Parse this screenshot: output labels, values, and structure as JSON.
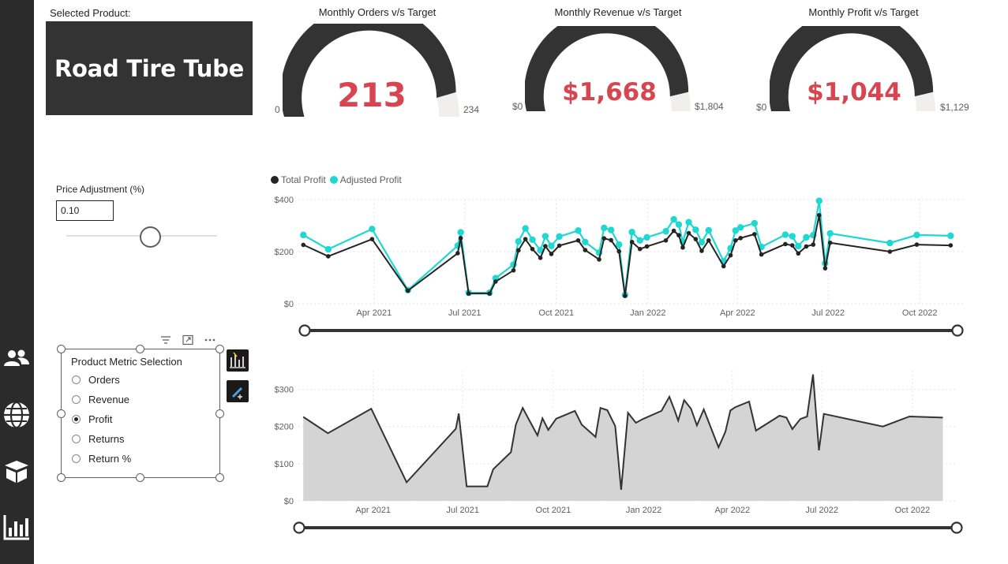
{
  "sidebar": {
    "items": [
      {
        "icon": "users-icon"
      },
      {
        "icon": "globe-icon"
      },
      {
        "icon": "box-icon"
      },
      {
        "icon": "bar-chart-icon"
      }
    ]
  },
  "selected_product": {
    "label": "Selected Product:",
    "value": "Road Tire Tube"
  },
  "gauges": [
    {
      "title": "Monthly Orders v/s Target",
      "value": "213",
      "min": "0",
      "max": "234",
      "fill_fraction": 0.91
    },
    {
      "title": "Monthly Revenue v/s Target",
      "value": "$1,668",
      "min": "$0",
      "max": "$1,804",
      "fill_fraction": 0.925
    },
    {
      "title": "Monthly Profit v/s Target",
      "value": "$1,044",
      "min": "$0",
      "max": "$1,129",
      "fill_fraction": 0.925
    }
  ],
  "price_adjustment": {
    "label": "Price Adjustment (%)",
    "value": "0.10",
    "slider_fraction": 0.5
  },
  "metric_selection": {
    "title": "Product Metric Selection",
    "options": [
      "Orders",
      "Revenue",
      "Profit",
      "Returns",
      "Return %"
    ],
    "selected": "Profit"
  },
  "colors": {
    "accent_red": "#d64550",
    "total_profit": "#252423",
    "adjusted_profit": "#1fd8d1",
    "area_fill": "#d4d4d4",
    "sidebar": "#2b2b2b"
  },
  "chart_data": [
    {
      "type": "line",
      "legend": [
        "Total Profit",
        "Adjusted Profit"
      ],
      "legend_position": "top-left",
      "yticks": [
        "$0",
        "$200",
        "$400"
      ],
      "ylim": [
        0,
        400
      ],
      "xlim": [
        "2021-01-15",
        "2022-11-15"
      ],
      "xticks": [
        {
          "label": "Apr 2021",
          "date": "2021-04-01"
        },
        {
          "label": "Jul 2021",
          "date": "2021-07-01"
        },
        {
          "label": "Oct 2021",
          "date": "2021-10-01"
        },
        {
          "label": "Jan 2022",
          "date": "2022-01-01"
        },
        {
          "label": "Apr 2022",
          "date": "2022-04-01"
        },
        {
          "label": "Jul 2022",
          "date": "2022-07-01"
        },
        {
          "label": "Oct 2022",
          "date": "2022-10-01"
        }
      ],
      "grid": true,
      "series": [
        {
          "name": "Total Profit",
          "points": [
            [
              "2021-01-20",
              226
            ],
            [
              "2021-02-14",
              182
            ],
            [
              "2021-03-30",
              248
            ],
            [
              "2021-05-05",
              50
            ],
            [
              "2021-06-24",
              194
            ],
            [
              "2021-06-27",
              252
            ],
            [
              "2021-07-05",
              39
            ],
            [
              "2021-07-26",
              39
            ],
            [
              "2021-08-01",
              85
            ],
            [
              "2021-08-19",
              128
            ],
            [
              "2021-08-24",
              205
            ],
            [
              "2021-08-31",
              248
            ],
            [
              "2021-09-07",
              210
            ],
            [
              "2021-09-15",
              176
            ],
            [
              "2021-09-20",
              221
            ],
            [
              "2021-09-26",
              191
            ],
            [
              "2021-10-04",
              223
            ],
            [
              "2021-10-23",
              243
            ],
            [
              "2021-10-30",
              206
            ],
            [
              "2021-11-13",
              170
            ],
            [
              "2021-11-18",
              251
            ],
            [
              "2021-11-25",
              244
            ],
            [
              "2021-12-03",
              201
            ],
            [
              "2021-12-09",
              30
            ],
            [
              "2021-12-16",
              237
            ],
            [
              "2021-12-24",
              210
            ],
            [
              "2021-12-31",
              220
            ],
            [
              "2022-01-19",
              243
            ],
            [
              "2022-01-27",
              280
            ],
            [
              "2022-02-01",
              263
            ],
            [
              "2022-02-05",
              216
            ],
            [
              "2022-02-11",
              271
            ],
            [
              "2022-02-18",
              248
            ],
            [
              "2022-02-24",
              203
            ],
            [
              "2022-03-03",
              243
            ],
            [
              "2022-03-18",
              144
            ],
            [
              "2022-03-25",
              186
            ],
            [
              "2022-03-30",
              243
            ],
            [
              "2022-04-04",
              252
            ],
            [
              "2022-04-18",
              267
            ],
            [
              "2022-04-25",
              189
            ],
            [
              "2022-05-19",
              229
            ],
            [
              "2022-05-26",
              224
            ],
            [
              "2022-06-01",
              193
            ],
            [
              "2022-06-09",
              220
            ],
            [
              "2022-06-16",
              227
            ],
            [
              "2022-06-22",
              340
            ],
            [
              "2022-06-28",
              136
            ],
            [
              "2022-07-03",
              234
            ],
            [
              "2022-09-01",
              200
            ],
            [
              "2022-09-28",
              227
            ],
            [
              "2022-11-01",
              224
            ]
          ]
        },
        {
          "name": "Adjusted Profit",
          "points": [
            [
              "2021-01-20",
              264
            ],
            [
              "2021-02-14",
              209
            ],
            [
              "2021-03-30",
              287
            ],
            [
              "2021-05-05",
              52
            ],
            [
              "2021-06-24",
              223
            ],
            [
              "2021-06-27",
              274
            ],
            [
              "2021-07-05",
              42
            ],
            [
              "2021-07-26",
              42
            ],
            [
              "2021-08-01",
              98
            ],
            [
              "2021-08-19",
              150
            ],
            [
              "2021-08-24",
              239
            ],
            [
              "2021-08-31",
              289
            ],
            [
              "2021-09-07",
              246
            ],
            [
              "2021-09-15",
              205
            ],
            [
              "2021-09-20",
              259
            ],
            [
              "2021-09-26",
              222
            ],
            [
              "2021-10-04",
              258
            ],
            [
              "2021-10-23",
              281
            ],
            [
              "2021-10-30",
              237
            ],
            [
              "2021-11-13",
              196
            ],
            [
              "2021-11-18",
              291
            ],
            [
              "2021-11-25",
              283
            ],
            [
              "2021-12-03",
              227
            ],
            [
              "2021-12-09",
              34
            ],
            [
              "2021-12-16",
              275
            ],
            [
              "2021-12-24",
              243
            ],
            [
              "2021-12-31",
              255
            ],
            [
              "2022-01-19",
              278
            ],
            [
              "2022-01-27",
              324
            ],
            [
              "2022-02-01",
              304
            ],
            [
              "2022-02-05",
              238
            ],
            [
              "2022-02-11",
              313
            ],
            [
              "2022-02-18",
              284
            ],
            [
              "2022-02-24",
              236
            ],
            [
              "2022-03-03",
              282
            ],
            [
              "2022-03-18",
              163
            ],
            [
              "2022-03-25",
              213
            ],
            [
              "2022-03-30",
              281
            ],
            [
              "2022-04-04",
              293
            ],
            [
              "2022-04-18",
              309
            ],
            [
              "2022-04-25",
              218
            ],
            [
              "2022-05-19",
              265
            ],
            [
              "2022-05-26",
              259
            ],
            [
              "2022-06-01",
              221
            ],
            [
              "2022-06-09",
              255
            ],
            [
              "2022-06-16",
              263
            ],
            [
              "2022-06-22",
              395
            ],
            [
              "2022-06-28",
              155
            ],
            [
              "2022-07-03",
              270
            ],
            [
              "2022-09-01",
              233
            ],
            [
              "2022-09-28",
              264
            ],
            [
              "2022-11-01",
              261
            ]
          ]
        }
      ]
    },
    {
      "type": "area",
      "yticks": [
        "$0",
        "$100",
        "$200",
        "$300"
      ],
      "ylim": [
        0,
        350
      ],
      "xlim": [
        "2021-01-15",
        "2022-11-15"
      ],
      "xticks": [
        {
          "label": "Apr 2021",
          "date": "2021-04-01"
        },
        {
          "label": "Jul 2021",
          "date": "2021-07-01"
        },
        {
          "label": "Oct 2021",
          "date": "2021-10-01"
        },
        {
          "label": "Jan 2022",
          "date": "2022-01-01"
        },
        {
          "label": "Apr 2022",
          "date": "2022-04-01"
        },
        {
          "label": "Jul 2022",
          "date": "2022-07-01"
        },
        {
          "label": "Oct 2022",
          "date": "2022-10-01"
        }
      ],
      "grid": true,
      "series": [
        {
          "points": [
            [
              "2021-01-20",
              226
            ],
            [
              "2021-02-14",
              182
            ],
            [
              "2021-03-30",
              248
            ],
            [
              "2021-05-05",
              50
            ],
            [
              "2021-06-24",
              194
            ],
            [
              "2021-06-27",
              235
            ],
            [
              "2021-07-05",
              39
            ],
            [
              "2021-07-26",
              39
            ],
            [
              "2021-08-01",
              85
            ],
            [
              "2021-08-19",
              131
            ],
            [
              "2021-08-24",
              205
            ],
            [
              "2021-08-31",
              250
            ],
            [
              "2021-09-07",
              215
            ],
            [
              "2021-09-15",
              176
            ],
            [
              "2021-09-20",
              222
            ],
            [
              "2021-09-26",
              191
            ],
            [
              "2021-10-04",
              221
            ],
            [
              "2021-10-23",
              242
            ],
            [
              "2021-10-30",
              205
            ],
            [
              "2021-11-13",
              172
            ],
            [
              "2021-11-18",
              250
            ],
            [
              "2021-11-25",
              244
            ],
            [
              "2021-12-03",
              201
            ],
            [
              "2021-12-09",
              30
            ],
            [
              "2021-12-16",
              237
            ],
            [
              "2021-12-24",
              210
            ],
            [
              "2021-12-31",
              220
            ],
            [
              "2022-01-19",
              242
            ],
            [
              "2022-01-27",
              280
            ],
            [
              "2022-02-01",
              246
            ],
            [
              "2022-02-05",
              216
            ],
            [
              "2022-02-11",
              271
            ],
            [
              "2022-02-18",
              248
            ],
            [
              "2022-02-24",
              203
            ],
            [
              "2022-03-03",
              246
            ],
            [
              "2022-03-18",
              144
            ],
            [
              "2022-03-25",
              186
            ],
            [
              "2022-03-30",
              243
            ],
            [
              "2022-04-04",
              252
            ],
            [
              "2022-04-18",
              267
            ],
            [
              "2022-04-25",
              189
            ],
            [
              "2022-05-19",
              229
            ],
            [
              "2022-05-26",
              224
            ],
            [
              "2022-06-01",
              193
            ],
            [
              "2022-06-09",
              220
            ],
            [
              "2022-06-16",
              227
            ],
            [
              "2022-06-22",
              340
            ],
            [
              "2022-06-28",
              136
            ],
            [
              "2022-07-03",
              234
            ],
            [
              "2022-09-01",
              200
            ],
            [
              "2022-09-28",
              227
            ],
            [
              "2022-11-01",
              224
            ]
          ]
        }
      ]
    }
  ]
}
